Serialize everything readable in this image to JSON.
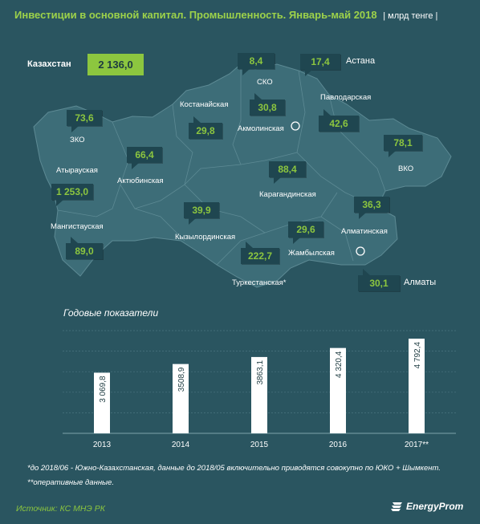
{
  "title": "Инвестиции в основной капитал. Промышленность. Январь-май 2018",
  "unit": "| млрд тенге |",
  "map": {
    "country": {
      "name": "Казахстан",
      "value": "2 136,0"
    },
    "regions": [
      {
        "name": "ЗКО",
        "value": "73,6"
      },
      {
        "name": "Атырауская",
        "value": "1 253,0"
      },
      {
        "name": "Мангистауская",
        "value": "89,0"
      },
      {
        "name": "Актюбинская",
        "value": "66,4"
      },
      {
        "name": "Костанайская",
        "value": "29,8"
      },
      {
        "name": "СКО",
        "value": "8,4"
      },
      {
        "name": "Акмолинская",
        "value": "30,8"
      },
      {
        "name": "Астана",
        "value": "17,4"
      },
      {
        "name": "Павлодарская",
        "value": "42,6"
      },
      {
        "name": "ВКО",
        "value": "78,1"
      },
      {
        "name": "Карагандинская",
        "value": "88,4"
      },
      {
        "name": "Кызылординская",
        "value": "39,9"
      },
      {
        "name": "Туркестанская*",
        "value": "222,7"
      },
      {
        "name": "Жамбылская",
        "value": "29,6"
      },
      {
        "name": "Алматинская",
        "value": "36,3"
      },
      {
        "name": "Алматы",
        "value": "30,1"
      }
    ]
  },
  "chart_data": {
    "type": "bar",
    "title": "Годовые показатели",
    "categories": [
      "2013",
      "2014",
      "2015",
      "2016",
      "2017**"
    ],
    "values": [
      3069.8,
      3508.9,
      3863.1,
      4320.4,
      4792.4
    ],
    "value_labels": [
      "3 069,8",
      "3508,9",
      "3863,1",
      "4 320,4",
      "4 792,4"
    ],
    "ylim": [
      0,
      5200
    ],
    "grid": true,
    "bar_color": "#ffffff"
  },
  "notes": [
    "*до 2018/06 - Южно-Казахстанская, данные до 2018/05 включительно приводятся совокупно по ЮКО + Шымкент.",
    "**оперативные данные."
  ],
  "source": "Источник: КС МНЭ РК",
  "logo": "EnergyProm",
  "colors": {
    "background": "#2a5560",
    "map": "#3d6d78",
    "accent": "#8cc63f",
    "callout": "#1f4650"
  }
}
